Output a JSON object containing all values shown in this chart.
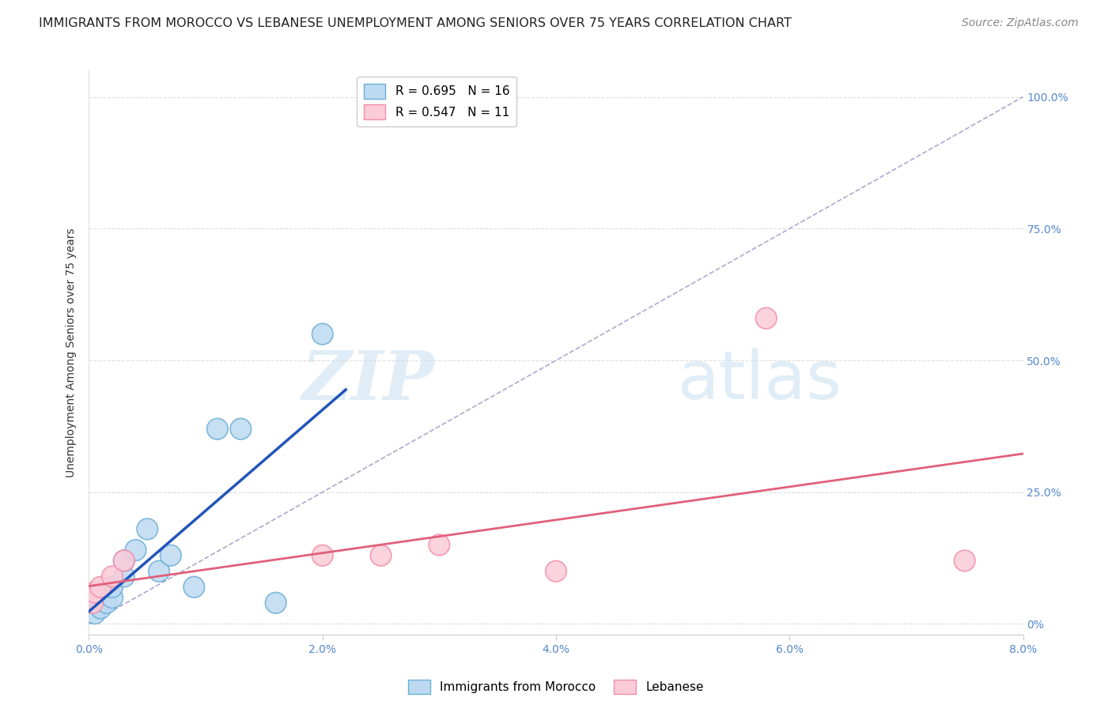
{
  "title": "IMMIGRANTS FROM MOROCCO VS LEBANESE UNEMPLOYMENT AMONG SENIORS OVER 75 YEARS CORRELATION CHART",
  "source": "Source: ZipAtlas.com",
  "ylabel": "Unemployment Among Seniors over 75 years",
  "xlim": [
    0.0,
    0.08
  ],
  "ylim": [
    -0.02,
    1.05
  ],
  "xtick_labels": [
    "0.0%",
    "2.0%",
    "4.0%",
    "6.0%",
    "8.0%"
  ],
  "xtick_values": [
    0.0,
    0.02,
    0.04,
    0.06,
    0.08
  ],
  "ytick_labels_right": [
    "0%",
    "25.0%",
    "50.0%",
    "75.0%",
    "100.0%"
  ],
  "ytick_values": [
    0.0,
    0.25,
    0.5,
    0.75,
    1.0
  ],
  "morocco_R": 0.695,
  "morocco_N": 16,
  "lebanese_R": 0.547,
  "lebanese_N": 11,
  "morocco_color": "#BDDAF2",
  "morocco_edge_color": "#6BAED6",
  "lebanese_color": "#FBCCD8",
  "lebanese_edge_color": "#F48CAA",
  "morocco_line_color": "#2255BB",
  "lebanese_line_color": "#E0607A",
  "diagonal_color": "#AAAACC",
  "background_color": "#FFFFFF",
  "grid_color": "#DDDDDD",
  "watermark_zip": "ZIP",
  "watermark_atlas": "atlas",
  "morocco_x": [
    0.0005,
    0.001,
    0.0015,
    0.002,
    0.002,
    0.003,
    0.003,
    0.004,
    0.005,
    0.006,
    0.007,
    0.009,
    0.011,
    0.013,
    0.016,
    0.02
  ],
  "morocco_y": [
    0.02,
    0.03,
    0.04,
    0.05,
    0.07,
    0.09,
    0.12,
    0.14,
    0.18,
    0.1,
    0.13,
    0.07,
    0.37,
    0.37,
    0.04,
    0.55
  ],
  "lebanese_x": [
    0.0003,
    0.0005,
    0.001,
    0.002,
    0.003,
    0.02,
    0.025,
    0.03,
    0.04,
    0.058,
    0.075
  ],
  "lebanese_y": [
    0.04,
    0.06,
    0.07,
    0.09,
    0.12,
    0.13,
    0.13,
    0.15,
    0.1,
    0.58,
    0.12
  ],
  "title_fontsize": 11.5,
  "axis_label_fontsize": 10,
  "tick_fontsize": 10,
  "legend_fontsize": 11,
  "source_fontsize": 10
}
